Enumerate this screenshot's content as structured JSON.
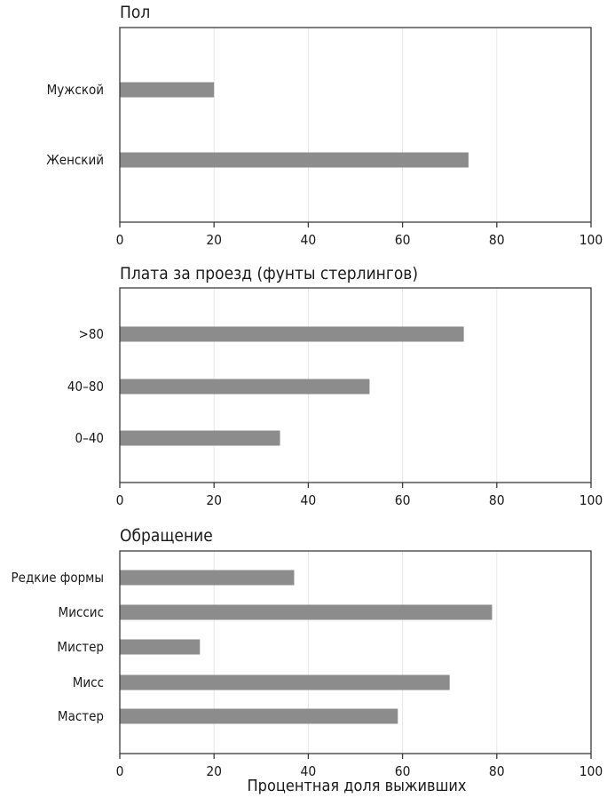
{
  "chart_data": [
    {
      "type": "bar",
      "orientation": "horizontal",
      "title": "Пол",
      "categories": [
        "Мужской",
        "Женский"
      ],
      "values": [
        20,
        74
      ],
      "xlim": [
        0,
        100
      ],
      "x_ticks": [
        "0",
        "20",
        "40",
        "60",
        "80",
        "100"
      ],
      "grid": true,
      "bar_color": "#8c8c8c"
    },
    {
      "type": "bar",
      "orientation": "horizontal",
      "title": "Плата за проезд (фунты стерлингов)",
      "categories": [
        ">80",
        "40–80",
        "0–40"
      ],
      "values": [
        73,
        53,
        34
      ],
      "xlim": [
        0,
        100
      ],
      "x_ticks": [
        "0",
        "20",
        "40",
        "60",
        "80",
        "100"
      ],
      "grid": true,
      "bar_color": "#8c8c8c"
    },
    {
      "type": "bar",
      "orientation": "horizontal",
      "title": "Обращение",
      "categories": [
        "Редкие формы",
        "Миссис",
        "Мистер",
        "Мисс",
        "Мастер"
      ],
      "values": [
        37,
        79,
        17,
        70,
        59
      ],
      "xlim": [
        0,
        100
      ],
      "x_ticks": [
        "0",
        "20",
        "40",
        "60",
        "80",
        "100"
      ],
      "grid": true,
      "bar_color": "#8c8c8c"
    }
  ],
  "xlabel": "Процентная доля выживших"
}
